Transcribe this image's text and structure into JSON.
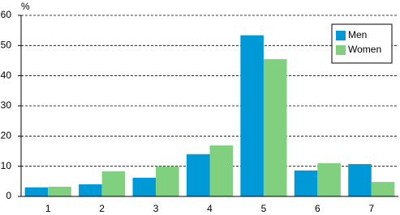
{
  "chart_data": {
    "type": "bar",
    "y_label": "%",
    "categories": [
      "1",
      "2",
      "3",
      "4",
      "5",
      "6",
      "7"
    ],
    "series": [
      {
        "name": "Men",
        "color": "#0099d8",
        "values": [
          3.0,
          4.0,
          6.2,
          14.0,
          53.4,
          8.6,
          10.7
        ]
      },
      {
        "name": "Women",
        "color": "#80d080",
        "values": [
          3.2,
          8.3,
          9.9,
          16.9,
          45.5,
          11.0,
          4.8
        ]
      }
    ],
    "ylim": [
      0,
      60
    ],
    "yticks": [
      0,
      10,
      20,
      30,
      40,
      50,
      60
    ],
    "grid": true,
    "legend": "upper-right"
  }
}
